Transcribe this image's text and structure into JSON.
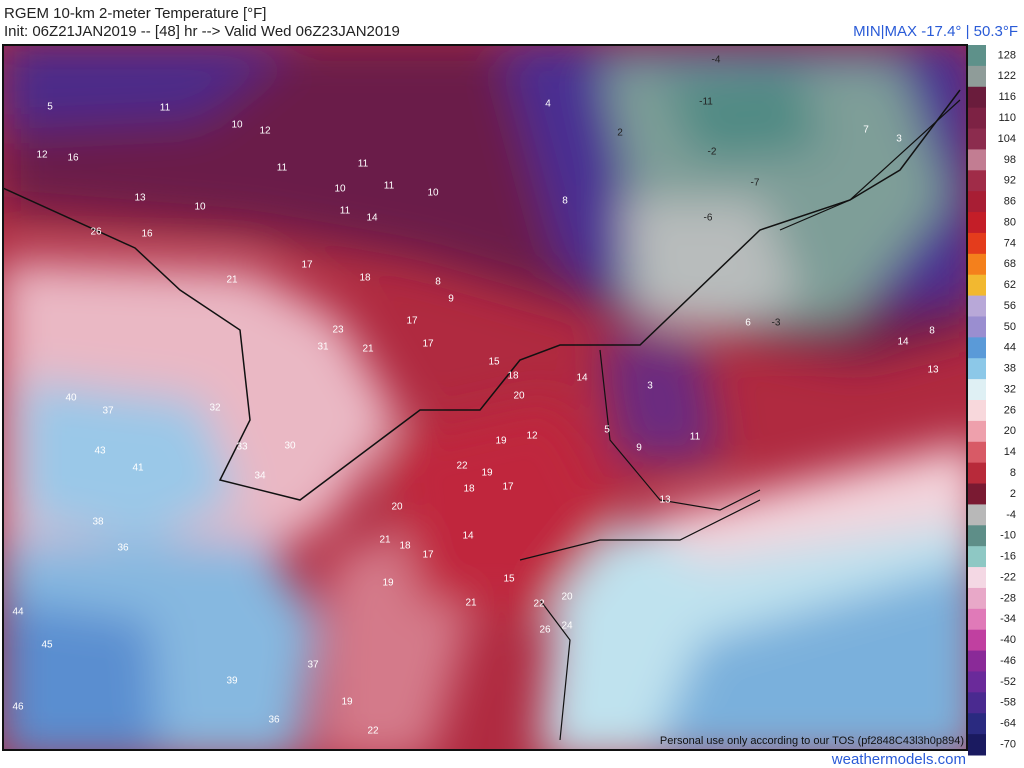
{
  "header": {
    "title": "RGEM 10-km 2-meter Temperature [°F]",
    "subtitle": "Init: 06Z21JAN2019 -- [48] hr --> Valid Wed 06Z23JAN2019",
    "minmax": "MIN|MAX -17.4° | 50.3°F"
  },
  "colorbar": {
    "labels": [
      128,
      122,
      116,
      110,
      104,
      98,
      92,
      86,
      80,
      74,
      68,
      62,
      56,
      50,
      44,
      38,
      32,
      26,
      20,
      14,
      8,
      2,
      -4,
      -10,
      -16,
      -22,
      -28,
      -34,
      -40,
      -46,
      -52,
      -58,
      -64,
      -70
    ],
    "colors": [
      "#5e918a",
      "#8f9c99",
      "#6a1c3c",
      "#7d2244",
      "#8c2c4e",
      "#c27d92",
      "#a02c48",
      "#a81e34",
      "#c41e28",
      "#e43c1c",
      "#f4801c",
      "#f2b830",
      "#b8a8d8",
      "#9a8ed0",
      "#5a9ad8",
      "#8cc8e8",
      "#dff0f4",
      "#f8d8dc",
      "#eea0ac",
      "#d85a66",
      "#b82a3a",
      "#7a1a32",
      "#b8b8b8",
      "#5e8e88",
      "#8ec8c4",
      "#f4d8e4",
      "#e8a8c8",
      "#e07ab8",
      "#c040a0",
      "#8a2a98",
      "#6a2a9a",
      "#4a2a90",
      "#2a2a80",
      "#1a1a60"
    ]
  },
  "map_labels": [
    5,
    11,
    10,
    12,
    12,
    16,
    11,
    11,
    10,
    11,
    10,
    13,
    10,
    11,
    14,
    8,
    26,
    16,
    17,
    18,
    21,
    8,
    9,
    17,
    17,
    23,
    31,
    21,
    15,
    18,
    14,
    20,
    12,
    19,
    22,
    19,
    17,
    18,
    20,
    21,
    14,
    18,
    17,
    15,
    19,
    21,
    22,
    20,
    26,
    24,
    37,
    39,
    36,
    19,
    22,
    43,
    41,
    40,
    37,
    36,
    44,
    45,
    46,
    38,
    30,
    34,
    32,
    33,
    4,
    -11,
    -4,
    -2,
    -7,
    -6,
    6,
    5,
    13,
    14,
    13,
    3,
    7,
    8,
    9,
    11,
    3,
    -3,
    2
  ],
  "footer": {
    "notice": "Personal use only according to our TOS (pf2848C43l3h0p894)",
    "site": "weathermodels.com"
  }
}
